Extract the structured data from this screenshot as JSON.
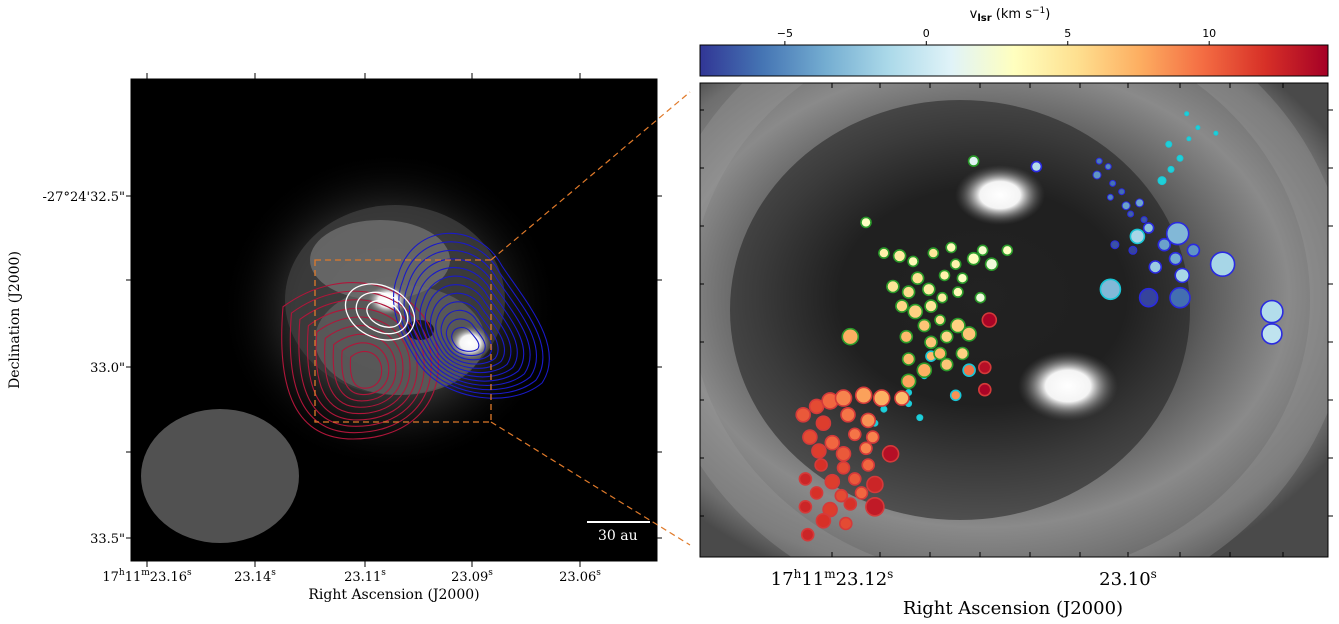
{
  "chart_data": [
    {
      "type": "scatter",
      "panel": "left",
      "description_type": "image with contours",
      "xlabel": "Right Ascension (J2000)",
      "ylabel": "Declination (J2000)",
      "x_ticks": [
        {
          "label_main": "17",
          "label_sup1": "h",
          "label_mid": "11",
          "label_sup2": "m",
          "label_end": "23.16",
          "label_sup3": "s"
        },
        {
          "label_main": "23.14",
          "label_sup3": "s"
        },
        {
          "label_main": "23.11",
          "label_sup3": "s"
        },
        {
          "label_main": "23.09",
          "label_sup3": "s"
        },
        {
          "label_main": "23.06",
          "label_sup3": "s"
        }
      ],
      "y_ticks": [
        "-27°24'32.5\"",
        "33.0\"",
        "33.5\""
      ],
      "scalebar_label": "30 au",
      "contours": [
        {
          "name": "white",
          "color": "#ffffff"
        },
        {
          "name": "red",
          "color": "#b0163a"
        },
        {
          "name": "blue",
          "color": "#1a1ac8"
        }
      ],
      "zoom_box_color": "#e07a2a"
    },
    {
      "type": "scatter",
      "panel": "right",
      "xlabel": "Right Ascension (J2000)",
      "x_ticks": [
        {
          "label_main": "17",
          "label_sup1": "h",
          "label_mid": "11",
          "label_sup2": "m",
          "label_end": "23.12",
          "label_sup3": "s"
        },
        {
          "label_main": "23.10",
          "label_sup3": "s"
        }
      ],
      "colorbar": {
        "title_main": "v",
        "title_sub": "lsr",
        "title_unit": " (km s",
        "title_exp": "−1",
        "title_close": ")",
        "range": [
          -8,
          14.2
        ],
        "ticks": [
          {
            "value": -5,
            "label": "−5"
          },
          {
            "value": 0,
            "label": "0"
          },
          {
            "value": 5,
            "label": "5"
          },
          {
            "value": 10,
            "label": "10"
          }
        ],
        "colormap": [
          "#313695",
          "#4575b4",
          "#74add1",
          "#abd9e9",
          "#e0f3f8",
          "#ffffbf",
          "#fee090",
          "#fdae61",
          "#f46d43",
          "#d73027",
          "#a50026"
        ]
      },
      "series": [
        {
          "name": "blue",
          "edge": "#2a2ae0",
          "points": [
            {
              "ra": 23.0997,
              "dec": -0.03,
              "v": -5.5,
              "s": 3
            },
            {
              "ra": 23.0993,
              "dec": -0.05,
              "v": -5.0,
              "s": 3
            },
            {
              "ra": 23.0998,
              "dec": -0.08,
              "v": -4.5,
              "s": 4
            },
            {
              "ra": 23.0991,
              "dec": -0.11,
              "v": -5.8,
              "s": 3
            },
            {
              "ra": 23.0987,
              "dec": -0.14,
              "v": -6.0,
              "s": 3
            },
            {
              "ra": 23.0992,
              "dec": -0.16,
              "v": -5.2,
              "s": 3
            },
            {
              "ra": 23.0985,
              "dec": -0.19,
              "v": -4.0,
              "s": 4
            },
            {
              "ra": 23.0979,
              "dec": -0.18,
              "v": -3.8,
              "s": 4
            },
            {
              "ra": 23.0983,
              "dec": -0.22,
              "v": -6.5,
              "s": 3
            },
            {
              "ra": 23.0977,
              "dec": -0.24,
              "v": -6.8,
              "s": 3
            },
            {
              "ra": 23.0975,
              "dec": -0.27,
              "v": -2.5,
              "s": 5
            },
            {
              "ra": 23.0962,
              "dec": -0.29,
              "v": -3.0,
              "s": 11
            },
            {
              "ra": 23.0968,
              "dec": -0.33,
              "v": -4.0,
              "s": 6
            },
            {
              "ra": 23.0982,
              "dec": -0.35,
              "v": -7.5,
              "s": 4
            },
            {
              "ra": 23.099,
              "dec": -0.33,
              "v": -7.0,
              "s": 4
            },
            {
              "ra": 23.0963,
              "dec": -0.38,
              "v": -3.5,
              "s": 6
            },
            {
              "ra": 23.0955,
              "dec": -0.35,
              "v": -4.5,
              "s": 6
            },
            {
              "ra": 23.0972,
              "dec": -0.41,
              "v": -2.0,
              "s": 6
            },
            {
              "ra": 23.096,
              "dec": -0.44,
              "v": -1.5,
              "s": 7
            },
            {
              "ra": 23.0975,
              "dec": -0.52,
              "v": -7.5,
              "s": 9
            },
            {
              "ra": 23.0961,
              "dec": -0.52,
              "v": -6.0,
              "s": 10
            },
            {
              "ra": 23.0942,
              "dec": -0.4,
              "v": -1.5,
              "s": 12
            },
            {
              "ra": 23.092,
              "dec": -0.57,
              "v": -1.0,
              "s": 11
            },
            {
              "ra": 23.092,
              "dec": -0.65,
              "v": -0.5,
              "s": 10
            },
            {
              "ra": 23.1025,
              "dec": -0.05,
              "v": -1.0,
              "s": 5
            }
          ]
        },
        {
          "name": "cyan",
          "edge": "#19c6d6",
          "points": [
            {
              "ra": 23.0958,
              "dec": 0.14,
              "v": 0,
              "s": 2
            },
            {
              "ra": 23.0953,
              "dec": 0.09,
              "v": 0,
              "s": 2
            },
            {
              "ra": 23.0945,
              "dec": 0.07,
              "v": 0,
              "s": 2
            },
            {
              "ra": 23.0957,
              "dec": 0.05,
              "v": 0,
              "s": 2
            },
            {
              "ra": 23.0966,
              "dec": 0.03,
              "v": 0,
              "s": 3
            },
            {
              "ra": 23.0961,
              "dec": -0.02,
              "v": 0,
              "s": 3
            },
            {
              "ra": 23.0965,
              "dec": -0.06,
              "v": 0,
              "s": 3
            },
            {
              "ra": 23.0969,
              "dec": -0.1,
              "v": 0,
              "s": 4
            },
            {
              "ra": 23.098,
              "dec": -0.3,
              "v": -1.5,
              "s": 7
            },
            {
              "ra": 23.0992,
              "dec": -0.49,
              "v": -3.0,
              "s": 10
            },
            {
              "ra": 23.1072,
              "dec": -0.73,
              "v": 7.0,
              "s": 5
            },
            {
              "ra": 23.1055,
              "dec": -0.78,
              "v": 9.5,
              "s": 6
            },
            {
              "ra": 23.1061,
              "dec": -0.87,
              "v": 8.5,
              "s": 5
            },
            {
              "ra": 23.1075,
              "dec": -0.8,
              "v": 0,
              "s": 3
            },
            {
              "ra": 23.1082,
              "dec": -0.86,
              "v": 0,
              "s": 3
            },
            {
              "ra": 23.1077,
              "dec": -0.95,
              "v": 0,
              "s": 3
            },
            {
              "ra": 23.1093,
              "dec": -0.92,
              "v": 0,
              "s": 3
            },
            {
              "ra": 23.1097,
              "dec": -0.97,
              "v": 0,
              "s": 3
            },
            {
              "ra": 23.11,
              "dec": -1.07,
              "v": 0,
              "s": 3
            },
            {
              "ra": 23.1082,
              "dec": -0.9,
              "v": 0,
              "s": 3
            }
          ]
        },
        {
          "name": "green",
          "edge": "#2a9a2a",
          "points": [
            {
              "ra": 23.1053,
              "dec": -0.03,
              "v": 1.0,
              "s": 5
            },
            {
              "ra": 23.1101,
              "dec": -0.25,
              "v": 3.0,
              "s": 5
            },
            {
              "ra": 23.1093,
              "dec": -0.36,
              "v": 4.0,
              "s": 5
            },
            {
              "ra": 23.1086,
              "dec": -0.37,
              "v": 4.5,
              "s": 6
            },
            {
              "ra": 23.108,
              "dec": -0.39,
              "v": 3.5,
              "s": 5
            },
            {
              "ra": 23.1071,
              "dec": -0.36,
              "v": 4.8,
              "s": 5
            },
            {
              "ra": 23.1063,
              "dec": -0.34,
              "v": 3.5,
              "s": 5
            },
            {
              "ra": 23.1061,
              "dec": -0.4,
              "v": 4.0,
              "s": 5
            },
            {
              "ra": 23.1053,
              "dec": -0.38,
              "v": 3.2,
              "s": 6
            },
            {
              "ra": 23.1049,
              "dec": -0.35,
              "v": 2.5,
              "s": 5
            },
            {
              "ra": 23.1045,
              "dec": -0.4,
              "v": 2.0,
              "s": 6
            },
            {
              "ra": 23.1038,
              "dec": -0.35,
              "v": 3.0,
              "s": 5
            },
            {
              "ra": 23.1066,
              "dec": -0.44,
              "v": 4.0,
              "s": 5
            },
            {
              "ra": 23.1058,
              "dec": -0.45,
              "v": 3.0,
              "s": 5
            },
            {
              "ra": 23.106,
              "dec": -0.5,
              "v": 3.5,
              "s": 5
            },
            {
              "ra": 23.105,
              "dec": -0.52,
              "v": 2.0,
              "s": 5
            },
            {
              "ra": 23.1089,
              "dec": -0.48,
              "v": 5.0,
              "s": 6
            },
            {
              "ra": 23.1082,
              "dec": -0.5,
              "v": 5.5,
              "s": 6
            },
            {
              "ra": 23.1078,
              "dec": -0.45,
              "v": 5.2,
              "s": 6
            },
            {
              "ra": 23.1073,
              "dec": -0.49,
              "v": 4.5,
              "s": 6
            },
            {
              "ra": 23.1085,
              "dec": -0.55,
              "v": 5.8,
              "s": 6
            },
            {
              "ra": 23.1079,
              "dec": -0.57,
              "v": 6.0,
              "s": 7
            },
            {
              "ra": 23.1072,
              "dec": -0.55,
              "v": 5.0,
              "s": 6
            },
            {
              "ra": 23.1067,
              "dec": -0.52,
              "v": 4.5,
              "s": 5
            },
            {
              "ra": 23.1075,
              "dec": -0.62,
              "v": 6.5,
              "s": 6
            },
            {
              "ra": 23.1068,
              "dec": -0.6,
              "v": 5.5,
              "s": 5
            },
            {
              "ra": 23.106,
              "dec": -0.62,
              "v": 6.0,
              "s": 7
            },
            {
              "ra": 23.1055,
              "dec": -0.65,
              "v": 6.5,
              "s": 7
            },
            {
              "ra": 23.1083,
              "dec": -0.66,
              "v": 7.0,
              "s": 6
            },
            {
              "ra": 23.1072,
              "dec": -0.68,
              "v": 6.5,
              "s": 6
            },
            {
              "ra": 23.1065,
              "dec": -0.66,
              "v": 5.8,
              "s": 6
            },
            {
              "ra": 23.1108,
              "dec": -0.66,
              "v": 7.5,
              "s": 8
            },
            {
              "ra": 23.1082,
              "dec": -0.74,
              "v": 7.0,
              "s": 6
            },
            {
              "ra": 23.1075,
              "dec": -0.78,
              "v": 7.5,
              "s": 7
            },
            {
              "ra": 23.1065,
              "dec": -0.76,
              "v": 6.5,
              "s": 6
            },
            {
              "ra": 23.1058,
              "dec": -0.72,
              "v": 6.0,
              "s": 6
            },
            {
              "ra": 23.1082,
              "dec": -0.82,
              "v": 7.8,
              "s": 7
            },
            {
              "ra": 23.1068,
              "dec": -0.72,
              "v": 7.0,
              "s": 6
            }
          ]
        },
        {
          "name": "red",
          "edge": "#d43a3a",
          "points": [
            {
              "ra": 23.1046,
              "dec": -0.6,
              "v": 14.0,
              "s": 7
            },
            {
              "ra": 23.1048,
              "dec": -0.77,
              "v": 13.5,
              "s": 6
            },
            {
              "ra": 23.1048,
              "dec": -0.85,
              "v": 14.0,
              "s": 6
            },
            {
              "ra": 23.1123,
              "dec": -0.91,
              "v": 11.0,
              "s": 7
            },
            {
              "ra": 23.1117,
              "dec": -0.89,
              "v": 10.0,
              "s": 8
            },
            {
              "ra": 23.1111,
              "dec": -0.88,
              "v": 9.0,
              "s": 8
            },
            {
              "ra": 23.1102,
              "dec": -0.87,
              "v": 8.0,
              "s": 8
            },
            {
              "ra": 23.1094,
              "dec": -0.88,
              "v": 7.5,
              "s": 8
            },
            {
              "ra": 23.1085,
              "dec": -0.88,
              "v": 7.0,
              "s": 7
            },
            {
              "ra": 23.1129,
              "dec": -0.94,
              "v": 10.5,
              "s": 7
            },
            {
              "ra": 23.112,
              "dec": -0.97,
              "v": 11.5,
              "s": 7
            },
            {
              "ra": 23.1109,
              "dec": -0.94,
              "v": 9.5,
              "s": 7
            },
            {
              "ra": 23.11,
              "dec": -0.96,
              "v": 8.5,
              "s": 7
            },
            {
              "ra": 23.1126,
              "dec": -1.02,
              "v": 11.0,
              "s": 7
            },
            {
              "ra": 23.1116,
              "dec": -1.04,
              "v": 10.0,
              "s": 7
            },
            {
              "ra": 23.1106,
              "dec": -1.01,
              "v": 9.5,
              "s": 6
            },
            {
              "ra": 23.1098,
              "dec": -1.02,
              "v": 9.0,
              "s": 6
            },
            {
              "ra": 23.1122,
              "dec": -1.07,
              "v": 11.5,
              "s": 7
            },
            {
              "ra": 23.1111,
              "dec": -1.08,
              "v": 10.5,
              "s": 7
            },
            {
              "ra": 23.1101,
              "dec": -1.06,
              "v": 9.0,
              "s": 6
            },
            {
              "ra": 23.109,
              "dec": -1.08,
              "v": 13.5,
              "s": 8
            },
            {
              "ra": 23.1121,
              "dec": -1.12,
              "v": 12.0,
              "s": 6
            },
            {
              "ra": 23.1111,
              "dec": -1.13,
              "v": 11.0,
              "s": 6
            },
            {
              "ra": 23.11,
              "dec": -1.12,
              "v": 10.0,
              "s": 6
            },
            {
              "ra": 23.1128,
              "dec": -1.17,
              "v": 12.5,
              "s": 6
            },
            {
              "ra": 23.1116,
              "dec": -1.18,
              "v": 11.5,
              "s": 7
            },
            {
              "ra": 23.1106,
              "dec": -1.17,
              "v": 10.5,
              "s": 6
            },
            {
              "ra": 23.1097,
              "dec": -1.19,
              "v": 12.5,
              "s": 8
            },
            {
              "ra": 23.1123,
              "dec": -1.22,
              "v": 12.0,
              "s": 6
            },
            {
              "ra": 23.1112,
              "dec": -1.23,
              "v": 11.0,
              "s": 6
            },
            {
              "ra": 23.1103,
              "dec": -1.22,
              "v": 10.0,
              "s": 6
            },
            {
              "ra": 23.1128,
              "dec": -1.27,
              "v": 12.5,
              "s": 6
            },
            {
              "ra": 23.1117,
              "dec": -1.28,
              "v": 11.5,
              "s": 7
            },
            {
              "ra": 23.1108,
              "dec": -1.26,
              "v": 12.0,
              "s": 6
            },
            {
              "ra": 23.1097,
              "dec": -1.27,
              "v": 13.0,
              "s": 9
            },
            {
              "ra": 23.112,
              "dec": -1.32,
              "v": 12.0,
              "s": 7
            },
            {
              "ra": 23.111,
              "dec": -1.33,
              "v": 11.0,
              "s": 6
            },
            {
              "ra": 23.1127,
              "dec": -1.37,
              "v": 12.5,
              "s": 6
            }
          ]
        }
      ]
    }
  ]
}
